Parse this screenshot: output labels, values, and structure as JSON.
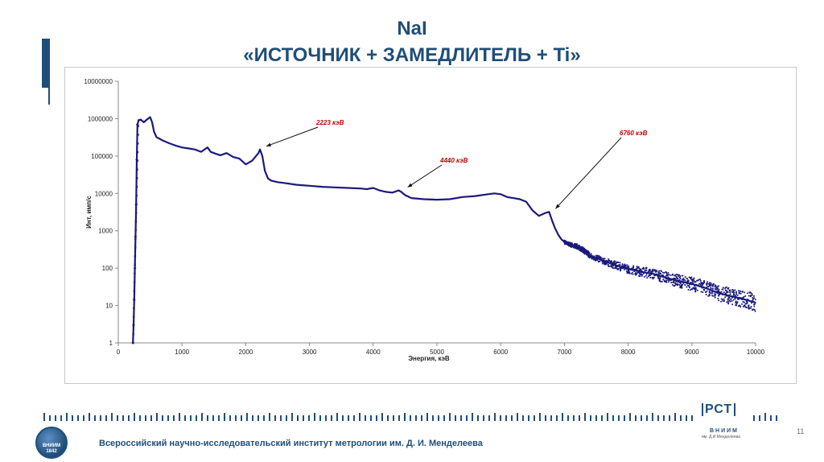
{
  "slide": {
    "title_line1": "NaI",
    "title_line2": "«ИСТОЧНИК + ЗАМЕДЛИТЕЛЬ + Ti»",
    "footer": "Всероссийский научно-исследовательский институт метрологии им. Д. И. Менделеева",
    "page_number": "11",
    "logo_left_text": "ВНИИМ",
    "logo_left_year": "1842",
    "logo_right_mark": "РСТ",
    "logo_right_name": "ВНИИМ",
    "logo_right_sub": "им. Д.И.Менделеева",
    "accent_color": "#1f4e79"
  },
  "chart_data": {
    "type": "scatter",
    "series_color": "#1a1a7a",
    "annotation_color": "#c00000",
    "xlabel": "Энергия, кэВ",
    "ylabel": "Инт, имп/с",
    "xlim": [
      0,
      10000
    ],
    "ylim": [
      1,
      10000000
    ],
    "yscale": "log",
    "xticks": [
      "0",
      "1000",
      "2000",
      "3000",
      "4000",
      "5000",
      "6000",
      "7000",
      "8000",
      "9000",
      "10000"
    ],
    "yticks": [
      "1",
      "10",
      "100",
      "1000",
      "10000",
      "100000",
      "1000000",
      "10000000"
    ],
    "grid": false,
    "legend": "none",
    "x": [
      230,
      240,
      250,
      260,
      270,
      280,
      290,
      300,
      320,
      350,
      400,
      450,
      500,
      530,
      560,
      600,
      700,
      800,
      900,
      1000,
      1100,
      1200,
      1300,
      1400,
      1450,
      1500,
      1600,
      1700,
      1800,
      1900,
      2000,
      2100,
      2200,
      2223,
      2260,
      2300,
      2350,
      2400,
      2500,
      2600,
      2800,
      3000,
      3200,
      3400,
      3600,
      3800,
      3900,
      4000,
      4100,
      4200,
      4300,
      4400,
      4440,
      4500,
      4600,
      4800,
      5000,
      5200,
      5400,
      5600,
      5800,
      5900,
      6000,
      6100,
      6200,
      6300,
      6400,
      6500,
      6600,
      6700,
      6760,
      6800,
      6850,
      6900,
      6950,
      7000,
      7100,
      7200,
      7300,
      7400,
      7600,
      7800,
      8000,
      8200,
      8400,
      8600,
      8800,
      9000,
      9200,
      9400,
      9600,
      9800,
      10000
    ],
    "y": [
      1,
      3,
      14,
      100,
      700,
      5000,
      80000,
      700000,
      900000,
      950000,
      800000,
      950000,
      1100000,
      800000,
      450000,
      320000,
      260000,
      220000,
      190000,
      170000,
      160000,
      150000,
      130000,
      170000,
      130000,
      120000,
      105000,
      120000,
      95000,
      85000,
      60000,
      75000,
      120000,
      150000,
      100000,
      40000,
      25000,
      22000,
      20000,
      19000,
      17000,
      16000,
      15000,
      14500,
      14000,
      13500,
      13000,
      14000,
      12000,
      11000,
      10500,
      12000,
      11000,
      9000,
      7500,
      7000,
      6800,
      7000,
      8000,
      8500,
      9500,
      10000,
      9500,
      8000,
      7500,
      7000,
      6000,
      3500,
      2500,
      3000,
      3200,
      2000,
      1200,
      800,
      600,
      500,
      420,
      380,
      300,
      220,
      160,
      120,
      95,
      80,
      70,
      55,
      45,
      38,
      30,
      22,
      18,
      15,
      12
    ],
    "annotations": [
      {
        "label": "2223 кэВ",
        "x": 2223,
        "y": 150000
      },
      {
        "label": "4440 кэВ",
        "x": 4440,
        "y": 12000
      },
      {
        "label": "6760 кэВ",
        "x": 6760,
        "y": 3200
      }
    ]
  }
}
